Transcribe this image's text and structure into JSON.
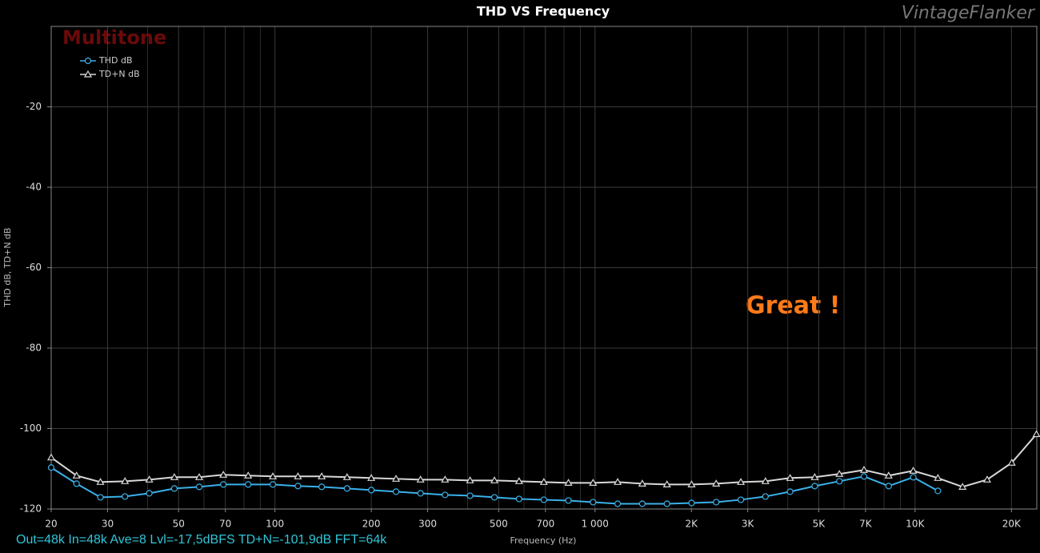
{
  "chart_data": {
    "type": "line",
    "title": "THD VS Frequency",
    "watermark": "VintageFlanker",
    "annotations": [
      "Multitone",
      "Great !"
    ],
    "footer": "Out=48k In=48k Ave=8 Lvl=-17,5dBFS TD+N=-101,9dB FFT=64k",
    "x_label": "Frequency (Hz)",
    "y_label": "THD dB, TD+N dB",
    "x_log": true,
    "grid": true,
    "legend": "top-left",
    "xlim": [
      20,
      24000
    ],
    "ylim": [
      -120,
      0
    ],
    "xticks": [
      20,
      30,
      50,
      70,
      100,
      200,
      300,
      500,
      700,
      {
        "value": 1000,
        "label": "1 000"
      },
      {
        "value": 2000,
        "label": "2K"
      },
      {
        "value": 3000,
        "label": "3K"
      },
      {
        "value": 5000,
        "label": "5K"
      },
      {
        "value": 7000,
        "label": "7K"
      },
      {
        "value": 10000,
        "label": "10K"
      },
      {
        "value": 20000,
        "label": "20K"
      }
    ],
    "x_minor_ticks": [
      40,
      60,
      80,
      90,
      400,
      600,
      800,
      900,
      4000,
      6000,
      8000,
      9000
    ],
    "yticks": [
      -120,
      -100,
      -80,
      -60,
      -40,
      -20
    ],
    "x": [
      20,
      24,
      28.5,
      34,
      40.5,
      48.5,
      58,
      69,
      82.5,
      98.5,
      118,
      140,
      168,
      200,
      239,
      285,
      340,
      407,
      485,
      579,
      692,
      826,
      986,
      1177,
      1405,
      1678,
      2003,
      2391,
      2855,
      3408,
      4069,
      4858,
      5800,
      6924,
      8267,
      9869,
      11782,
      14066,
      16793,
      20049,
      23935
    ],
    "series": [
      {
        "name": "THD dB",
        "color": "#3ab0e8",
        "marker": "circle",
        "values": [
          -109.7,
          -113.7,
          -117.1,
          -116.9,
          -116.1,
          -114.9,
          -114.5,
          -113.9,
          -113.9,
          -113.9,
          -114.3,
          -114.5,
          -114.9,
          -115.3,
          -115.7,
          -116.1,
          -116.5,
          -116.7,
          -117.1,
          -117.5,
          -117.7,
          -117.9,
          -118.3,
          -118.7,
          -118.7,
          -118.7,
          -118.5,
          -118.3,
          -117.7,
          -116.9,
          -115.7,
          -114.3,
          -113.1,
          -111.9,
          -114.3,
          -112.1,
          -115.5,
          null,
          null,
          null,
          null
        ]
      },
      {
        "name": "TD+N dB",
        "color": "#d8d8d8",
        "marker": "triangle",
        "values": [
          -107.2,
          -111.7,
          -113.3,
          -113.1,
          -112.7,
          -112.1,
          -112.1,
          -111.5,
          -111.7,
          -111.9,
          -111.9,
          -111.9,
          -112.1,
          -112.3,
          -112.5,
          -112.7,
          -112.7,
          -112.9,
          -112.9,
          -113.1,
          -113.3,
          -113.5,
          -113.5,
          -113.3,
          -113.7,
          -113.9,
          -113.9,
          -113.7,
          -113.3,
          -113.1,
          -112.3,
          -112.1,
          -111.3,
          -110.3,
          -111.7,
          -110.5,
          -112.3,
          -114.5,
          -112.7,
          -108.5,
          -101.4
        ]
      }
    ]
  }
}
